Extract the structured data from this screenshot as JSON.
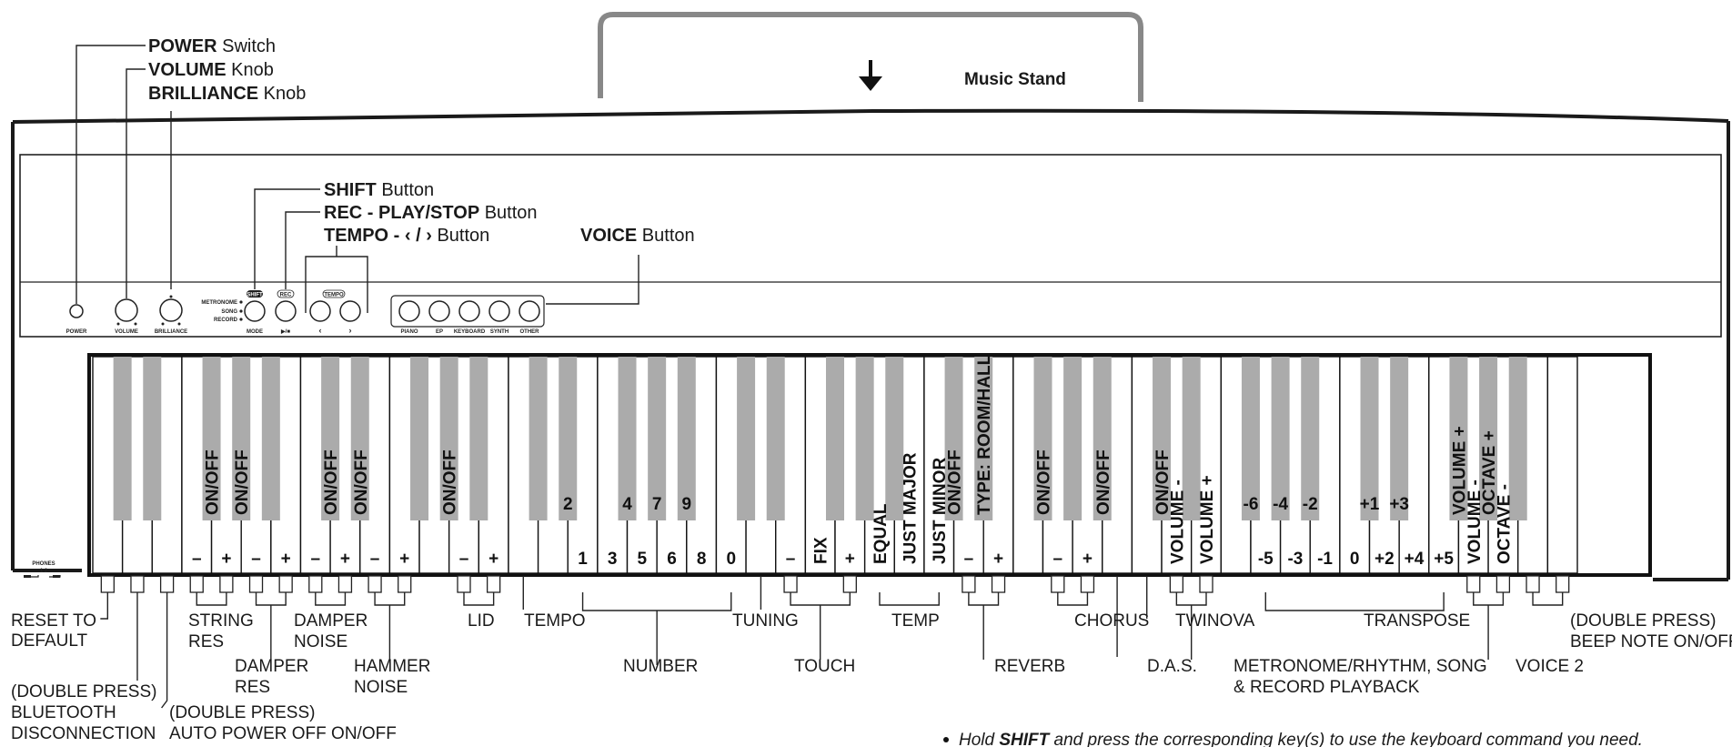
{
  "top_labels": {
    "power": {
      "bold": "POWER",
      "rest": " Switch"
    },
    "volume": {
      "bold": "VOLUME",
      "rest": " Knob"
    },
    "brilliance": {
      "bold": "BRILLIANCE",
      "rest": " Knob"
    },
    "music_stand": "Music Stand",
    "shift": {
      "bold": "SHIFT",
      "rest": " Button"
    },
    "rec": {
      "bold": "REC - PLAY/STOP",
      "rest": " Button"
    },
    "tempo": {
      "bold": "TEMPO - ‹ / ›",
      "rest": " Button"
    },
    "voice": {
      "bold": "VOICE",
      "rest": " Button"
    }
  },
  "panel_small": {
    "power": "POWER",
    "volume": "VOLUME",
    "brilliance": "BRILLIANCE",
    "metronome": "METRONOME",
    "song": "SONG",
    "record": "RECORD",
    "shift_badge": "SHIFT",
    "rec_badge": "REC",
    "tempo_badge": "TEMPO",
    "mode": "MODE",
    "play_stop": "▶/■",
    "lt": "‹",
    "gt": "›",
    "piano": "PIANO",
    "ep": "EP",
    "keyboard": "KEYBOARD",
    "synth": "SYNTH",
    "other": "OTHER",
    "phones": "PHONES",
    "phones_nums": "1    2"
  },
  "white_key_labels": [
    "",
    "",
    "",
    "–",
    "+",
    "–",
    "+",
    "–",
    "+",
    "–",
    "+",
    "",
    "–",
    "+",
    "",
    "",
    "1",
    "3",
    "5",
    "6",
    "8",
    "0",
    "",
    "–",
    "FIX",
    "+",
    "EQUAL",
    "JUST MAJOR",
    "JUST MINOR",
    "–",
    "+",
    "",
    "–",
    "+",
    "",
    "",
    "VOLUME -",
    "VOLUME +",
    "",
    "-5",
    "-3",
    "-1",
    "0",
    "+2",
    "+4",
    "+5",
    "VOLUME -",
    "OCTAVE -",
    "",
    ""
  ],
  "black_key_labels": [
    "",
    "",
    "ON/OFF",
    "ON/OFF",
    "",
    "ON/OFF",
    "ON/OFF",
    "",
    "ON/OFF",
    "",
    "",
    "2",
    "4",
    "7",
    "9",
    "",
    "",
    "",
    "",
    "",
    "ON/OFF",
    "TYPE: ROOM/HALL",
    "ON/OFF",
    "",
    "ON/OFF",
    "ON/OFF",
    "",
    "-6",
    "-4",
    "-2",
    "+1",
    "+3",
    "VOLUME +",
    "OCTAVE +",
    ""
  ],
  "bottom_labels": {
    "reset_to_default": [
      "RESET TO",
      "DEFAULT"
    ],
    "bluetooth": [
      "(DOUBLE PRESS)",
      "BLUETOOTH",
      "DISCONNECTION"
    ],
    "auto_power": [
      "(DOUBLE PRESS)",
      "AUTO POWER OFF ON/OFF"
    ],
    "string_res": [
      "STRING",
      "RES"
    ],
    "damper_res": [
      "DAMPER",
      "RES"
    ],
    "damper_noise": [
      "DAMPER",
      "NOISE"
    ],
    "hammer_noise": [
      "HAMMER",
      "NOISE"
    ],
    "lid": "LID",
    "tempo": "TEMPO",
    "number": "NUMBER",
    "tuning": "TUNING",
    "touch": "TOUCH",
    "temp": "TEMP",
    "reverb": "REVERB",
    "chorus": "CHORUS",
    "das": "D.A.S.",
    "twinova": "TWINOVA",
    "metronome": [
      "METRONOME/RHYTHM, SONG",
      "& RECORD PLAYBACK"
    ],
    "transpose": "TRANSPOSE",
    "voice2": "VOICE 2",
    "beep": [
      "(DOUBLE PRESS)",
      "BEEP NOTE ON/OFF"
    ]
  },
  "note": {
    "prefix": "Hold ",
    "bold": "SHIFT",
    "rest": " and press the corresponding key(s) to use the keyboard command you need."
  }
}
